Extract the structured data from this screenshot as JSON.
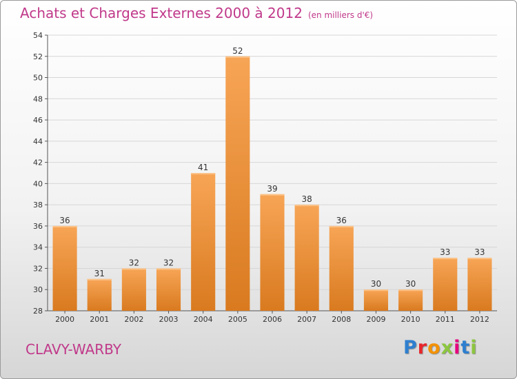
{
  "title": "Achats et Charges Externes 2000 à 2012",
  "unit": "(en milliers d'€)",
  "commune": "CLAVY-WARBY",
  "logo": {
    "text": "Proxiti",
    "colors": [
      "#2e7fcf",
      "#e8262b",
      "#f39200",
      "#8cc63f",
      "#e6007e",
      "#2e7fcf",
      "#8cc63f"
    ]
  },
  "colors": {
    "title": "#c0398a",
    "bar_light": "#f7a556",
    "bar_dark": "#d97a1f",
    "grid": "#d6d6d6"
  },
  "chart_data": {
    "type": "bar",
    "categories": [
      "2000",
      "2001",
      "2002",
      "2003",
      "2004",
      "2005",
      "2006",
      "2007",
      "2008",
      "2009",
      "2010",
      "2011",
      "2012"
    ],
    "values": [
      36,
      31,
      32,
      32,
      41,
      52,
      39,
      38,
      36,
      30,
      30,
      33,
      33
    ],
    "title": "Achats et Charges Externes 2000 à 2012",
    "xlabel": "",
    "ylabel": "",
    "ylim": [
      28,
      54
    ],
    "yticks": [
      28,
      30,
      32,
      34,
      36,
      38,
      40,
      42,
      44,
      46,
      48,
      50,
      52,
      54
    ],
    "grid": true
  }
}
